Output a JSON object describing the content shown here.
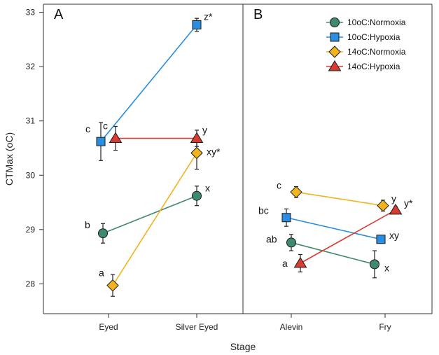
{
  "chart_data": {
    "type": "scatter",
    "ylabel": "CTMax (oC)",
    "xlabel": "Stage",
    "ylim": [
      27.45,
      33.15
    ],
    "yticks": [
      28,
      29,
      30,
      31,
      32,
      33
    ],
    "grid": false,
    "legend_placement": "top-right",
    "series_styles": [
      {
        "name": "10oC:Normoxia",
        "marker": "circle",
        "color": "#3f8a6e"
      },
      {
        "name": "10oC:Hypoxia",
        "marker": "square",
        "color": "#2a8ddf"
      },
      {
        "name": "14oC:Normoxia",
        "marker": "diamond",
        "color": "#f2b31c"
      },
      {
        "name": "14oC:Hypoxia",
        "marker": "triangle",
        "color": "#d93a32"
      }
    ],
    "panels": [
      {
        "letter": "A",
        "categories": [
          "Eyed",
          "Silver Eyed"
        ],
        "series": [
          {
            "name": "10oC:Normoxia",
            "values": [
              28.93,
              29.62
            ],
            "err": [
              0.18,
              0.18
            ],
            "labels": [
              "b",
              "x"
            ]
          },
          {
            "name": "10oC:Hypoxia",
            "values": [
              30.62,
              32.77
            ],
            "err": [
              0.35,
              0.12
            ],
            "labels": [
              "c",
              "z*"
            ]
          },
          {
            "name": "14oC:Normoxia",
            "values": [
              27.97,
              30.41
            ],
            "err": [
              0.2,
              0.3
            ],
            "labels": [
              "a",
              "xy*"
            ]
          },
          {
            "name": "14oC:Hypoxia",
            "values": [
              30.68,
              30.68
            ],
            "err": [
              0.22,
              0.15
            ],
            "labels": [
              "c",
              "y"
            ]
          }
        ]
      },
      {
        "letter": "B",
        "categories": [
          "Alevin",
          "Fry"
        ],
        "series": [
          {
            "name": "10oC:Normoxia",
            "values": [
              28.76,
              28.36
            ],
            "err": [
              0.15,
              0.25
            ],
            "labels": [
              "ab",
              "x"
            ]
          },
          {
            "name": "10oC:Hypoxia",
            "values": [
              29.22,
              28.82
            ],
            "err": [
              0.16,
              0.0
            ],
            "labels": [
              "bc",
              "xy"
            ]
          },
          {
            "name": "14oC:Normoxia",
            "values": [
              29.69,
              29.44
            ],
            "err": [
              0.1,
              0.1
            ],
            "labels": [
              "c",
              "y"
            ]
          },
          {
            "name": "14oC:Hypoxia",
            "values": [
              28.38,
              29.36
            ],
            "err": [
              0.16,
              0.06
            ],
            "labels": [
              "a",
              "y*"
            ]
          }
        ]
      }
    ]
  }
}
